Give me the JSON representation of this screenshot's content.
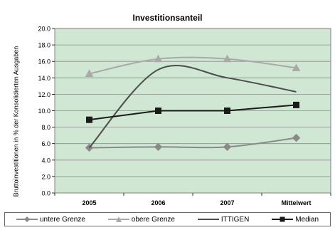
{
  "chart_data": {
    "type": "line",
    "title": "Investitionsanteil",
    "ylabel": "Bruttoinvestitionen in % der Konsolidierten Ausgaben",
    "xlabel": "",
    "categories": [
      "2005",
      "2006",
      "2007",
      "Mittelwert"
    ],
    "ylim": [
      0,
      20
    ],
    "ytick_step": 2,
    "ytick_labels": [
      "0.0",
      "2.0",
      "4.0",
      "6.0",
      "8.0",
      "10.0",
      "12.0",
      "14.0",
      "16.0",
      "18.0",
      "20.0"
    ],
    "grid": true,
    "legend": "bottom",
    "plot_background": "#cfe7d3",
    "series": [
      {
        "name": "untere Grenze",
        "values": [
          5.5,
          5.6,
          5.6,
          6.7
        ],
        "color": "#8a8a8a",
        "marker": "diamond",
        "smooth": true
      },
      {
        "name": "obere Grenze",
        "values": [
          14.5,
          16.3,
          16.3,
          15.2
        ],
        "color": "#a9a9a9",
        "marker": "triangle",
        "smooth": true
      },
      {
        "name": "ITTIGEN",
        "values": [
          5.5,
          15.0,
          14.0,
          12.3
        ],
        "color": "#4d4d4d",
        "marker": "none",
        "smooth": true
      },
      {
        "name": "Median",
        "values": [
          8.9,
          10.0,
          10.0,
          10.7
        ],
        "color": "#1a1a1a",
        "marker": "square",
        "smooth": false
      }
    ]
  }
}
